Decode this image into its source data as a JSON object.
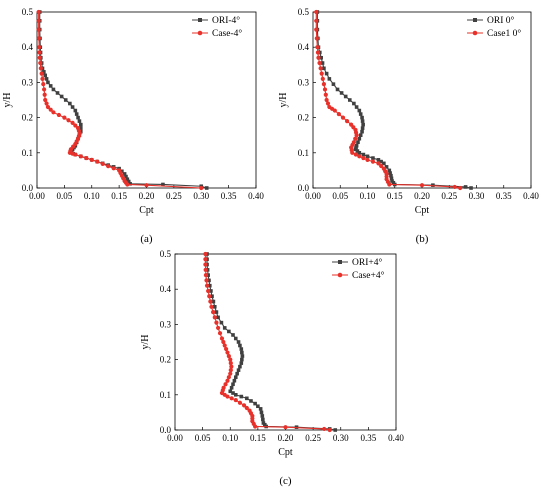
{
  "chart_data": [
    {
      "type": "line",
      "panel_label": "(a)",
      "xlabel": "Cpt",
      "ylabel": "y/H",
      "xlim": [
        0,
        0.4
      ],
      "ylim": [
        0,
        0.5
      ],
      "xticks": [
        "0.00",
        "0.05",
        "0.10",
        "0.15",
        "0.20",
        "0.25",
        "0.30",
        "0.35",
        "0.40"
      ],
      "yticks": [
        "0.0",
        "0.1",
        "0.2",
        "0.3",
        "0.4",
        "0.5"
      ],
      "legend_position": "top-right",
      "series": [
        {
          "name": "ORI-4°",
          "color": "#404040",
          "marker": "square",
          "points": [
            [
              0.005,
              0.5
            ],
            [
              0.005,
              0.45
            ],
            [
              0.006,
              0.4
            ],
            [
              0.007,
              0.37
            ],
            [
              0.01,
              0.34
            ],
            [
              0.015,
              0.32
            ],
            [
              0.02,
              0.3
            ],
            [
              0.03,
              0.28
            ],
            [
              0.045,
              0.26
            ],
            [
              0.06,
              0.24
            ],
            [
              0.07,
              0.22
            ],
            [
              0.075,
              0.2
            ],
            [
              0.08,
              0.18
            ],
            [
              0.08,
              0.16
            ],
            [
              0.075,
              0.14
            ],
            [
              0.07,
              0.12
            ],
            [
              0.065,
              0.11
            ],
            [
              0.062,
              0.1
            ],
            [
              0.07,
              0.095
            ],
            [
              0.09,
              0.085
            ],
            [
              0.11,
              0.075
            ],
            [
              0.13,
              0.065
            ],
            [
              0.15,
              0.055
            ],
            [
              0.16,
              0.04
            ],
            [
              0.165,
              0.025
            ],
            [
              0.17,
              0.012
            ],
            [
              0.23,
              0.01
            ],
            [
              0.3,
              0.005
            ],
            [
              0.31,
              0.0
            ]
          ]
        },
        {
          "name": "Case-4°",
          "color": "#e8312a",
          "marker": "circle",
          "points": [
            [
              0.003,
              0.5
            ],
            [
              0.003,
              0.45
            ],
            [
              0.004,
              0.4
            ],
            [
              0.005,
              0.37
            ],
            [
              0.007,
              0.34
            ],
            [
              0.01,
              0.31
            ],
            [
              0.013,
              0.28
            ],
            [
              0.015,
              0.25
            ],
            [
              0.02,
              0.23
            ],
            [
              0.03,
              0.215
            ],
            [
              0.05,
              0.2
            ],
            [
              0.065,
              0.185
            ],
            [
              0.075,
              0.17
            ],
            [
              0.078,
              0.155
            ],
            [
              0.075,
              0.14
            ],
            [
              0.07,
              0.125
            ],
            [
              0.062,
              0.11
            ],
            [
              0.06,
              0.1
            ],
            [
              0.07,
              0.095
            ],
            [
              0.09,
              0.085
            ],
            [
              0.11,
              0.075
            ],
            [
              0.13,
              0.062
            ],
            [
              0.15,
              0.05
            ],
            [
              0.155,
              0.035
            ],
            [
              0.16,
              0.02
            ],
            [
              0.165,
              0.01
            ],
            [
              0.2,
              0.008
            ],
            [
              0.3,
              0.0
            ]
          ]
        }
      ]
    },
    {
      "type": "line",
      "panel_label": "(b)",
      "xlabel": "Cpt",
      "ylabel": "y/H",
      "xlim": [
        0,
        0.4
      ],
      "ylim": [
        0,
        0.5
      ],
      "xticks": [
        "0.00",
        "0.05",
        "0.10",
        "0.15",
        "0.20",
        "0.25",
        "0.30",
        "0.35",
        "0.40"
      ],
      "yticks": [
        "0.0",
        "0.1",
        "0.2",
        "0.3",
        "0.4",
        "0.5"
      ],
      "legend_position": "top-right",
      "series": [
        {
          "name": "ORI 0°",
          "color": "#404040",
          "marker": "square",
          "points": [
            [
              0.008,
              0.5
            ],
            [
              0.008,
              0.45
            ],
            [
              0.01,
              0.4
            ],
            [
              0.015,
              0.37
            ],
            [
              0.02,
              0.34
            ],
            [
              0.03,
              0.31
            ],
            [
              0.045,
              0.28
            ],
            [
              0.06,
              0.26
            ],
            [
              0.075,
              0.24
            ],
            [
              0.085,
              0.22
            ],
            [
              0.09,
              0.2
            ],
            [
              0.092,
              0.18
            ],
            [
              0.09,
              0.16
            ],
            [
              0.085,
              0.14
            ],
            [
              0.08,
              0.12
            ],
            [
              0.078,
              0.11
            ],
            [
              0.085,
              0.1
            ],
            [
              0.1,
              0.09
            ],
            [
              0.12,
              0.08
            ],
            [
              0.13,
              0.07
            ],
            [
              0.14,
              0.05
            ],
            [
              0.143,
              0.035
            ],
            [
              0.145,
              0.02
            ],
            [
              0.15,
              0.01
            ],
            [
              0.22,
              0.008
            ],
            [
              0.28,
              0.003
            ],
            [
              0.29,
              0.0
            ]
          ]
        },
        {
          "name": "Case1 0°",
          "color": "#e8312a",
          "marker": "circle",
          "points": [
            [
              0.006,
              0.5
            ],
            [
              0.006,
              0.45
            ],
            [
              0.008,
              0.4
            ],
            [
              0.01,
              0.37
            ],
            [
              0.014,
              0.34
            ],
            [
              0.018,
              0.31
            ],
            [
              0.022,
              0.28
            ],
            [
              0.025,
              0.25
            ],
            [
              0.03,
              0.23
            ],
            [
              0.04,
              0.22
            ],
            [
              0.055,
              0.2
            ],
            [
              0.07,
              0.18
            ],
            [
              0.078,
              0.165
            ],
            [
              0.08,
              0.15
            ],
            [
              0.075,
              0.13
            ],
            [
              0.07,
              0.115
            ],
            [
              0.072,
              0.1
            ],
            [
              0.085,
              0.09
            ],
            [
              0.1,
              0.08
            ],
            [
              0.12,
              0.07
            ],
            [
              0.13,
              0.055
            ],
            [
              0.135,
              0.04
            ],
            [
              0.135,
              0.025
            ],
            [
              0.14,
              0.01
            ],
            [
              0.2,
              0.008
            ],
            [
              0.26,
              0.003
            ],
            [
              0.27,
              0.0
            ]
          ]
        }
      ]
    },
    {
      "type": "line",
      "panel_label": "(c)",
      "xlabel": "Cpt",
      "ylabel": "y/H",
      "xlim": [
        0,
        0.4
      ],
      "ylim": [
        0,
        0.5
      ],
      "xticks": [
        "0.00",
        "0.05",
        "0.10",
        "0.15",
        "0.20",
        "0.25",
        "0.30",
        "0.35",
        "0.40"
      ],
      "yticks": [
        "0.0",
        "0.1",
        "0.2",
        "0.3",
        "0.4",
        "0.5"
      ],
      "legend_position": "top-right",
      "series": [
        {
          "name": "ORI+4°",
          "color": "#404040",
          "marker": "square",
          "points": [
            [
              0.058,
              0.5
            ],
            [
              0.058,
              0.47
            ],
            [
              0.06,
              0.44
            ],
            [
              0.063,
              0.41
            ],
            [
              0.067,
              0.38
            ],
            [
              0.072,
              0.35
            ],
            [
              0.078,
              0.32
            ],
            [
              0.09,
              0.29
            ],
            [
              0.105,
              0.27
            ],
            [
              0.115,
              0.25
            ],
            [
              0.12,
              0.23
            ],
            [
              0.122,
              0.21
            ],
            [
              0.12,
              0.19
            ],
            [
              0.115,
              0.17
            ],
            [
              0.11,
              0.15
            ],
            [
              0.105,
              0.13
            ],
            [
              0.1,
              0.11
            ],
            [
              0.11,
              0.1
            ],
            [
              0.13,
              0.09
            ],
            [
              0.145,
              0.075
            ],
            [
              0.155,
              0.06
            ],
            [
              0.158,
              0.04
            ],
            [
              0.16,
              0.02
            ],
            [
              0.165,
              0.01
            ],
            [
              0.22,
              0.008
            ],
            [
              0.28,
              0.003
            ],
            [
              0.29,
              0.0
            ]
          ]
        },
        {
          "name": "Case+4°",
          "color": "#e8312a",
          "marker": "circle",
          "points": [
            [
              0.055,
              0.5
            ],
            [
              0.055,
              0.47
            ],
            [
              0.056,
              0.44
            ],
            [
              0.058,
              0.41
            ],
            [
              0.062,
              0.38
            ],
            [
              0.066,
              0.35
            ],
            [
              0.072,
              0.32
            ],
            [
              0.078,
              0.29
            ],
            [
              0.085,
              0.26
            ],
            [
              0.09,
              0.24
            ],
            [
              0.095,
              0.22
            ],
            [
              0.1,
              0.2
            ],
            [
              0.102,
              0.18
            ],
            [
              0.1,
              0.16
            ],
            [
              0.095,
              0.14
            ],
            [
              0.088,
              0.12
            ],
            [
              0.085,
              0.105
            ],
            [
              0.095,
              0.095
            ],
            [
              0.11,
              0.085
            ],
            [
              0.125,
              0.07
            ],
            [
              0.135,
              0.055
            ],
            [
              0.14,
              0.04
            ],
            [
              0.14,
              0.025
            ],
            [
              0.145,
              0.01
            ],
            [
              0.2,
              0.008
            ],
            [
              0.27,
              0.003
            ],
            [
              0.28,
              0.0
            ]
          ]
        }
      ]
    }
  ]
}
